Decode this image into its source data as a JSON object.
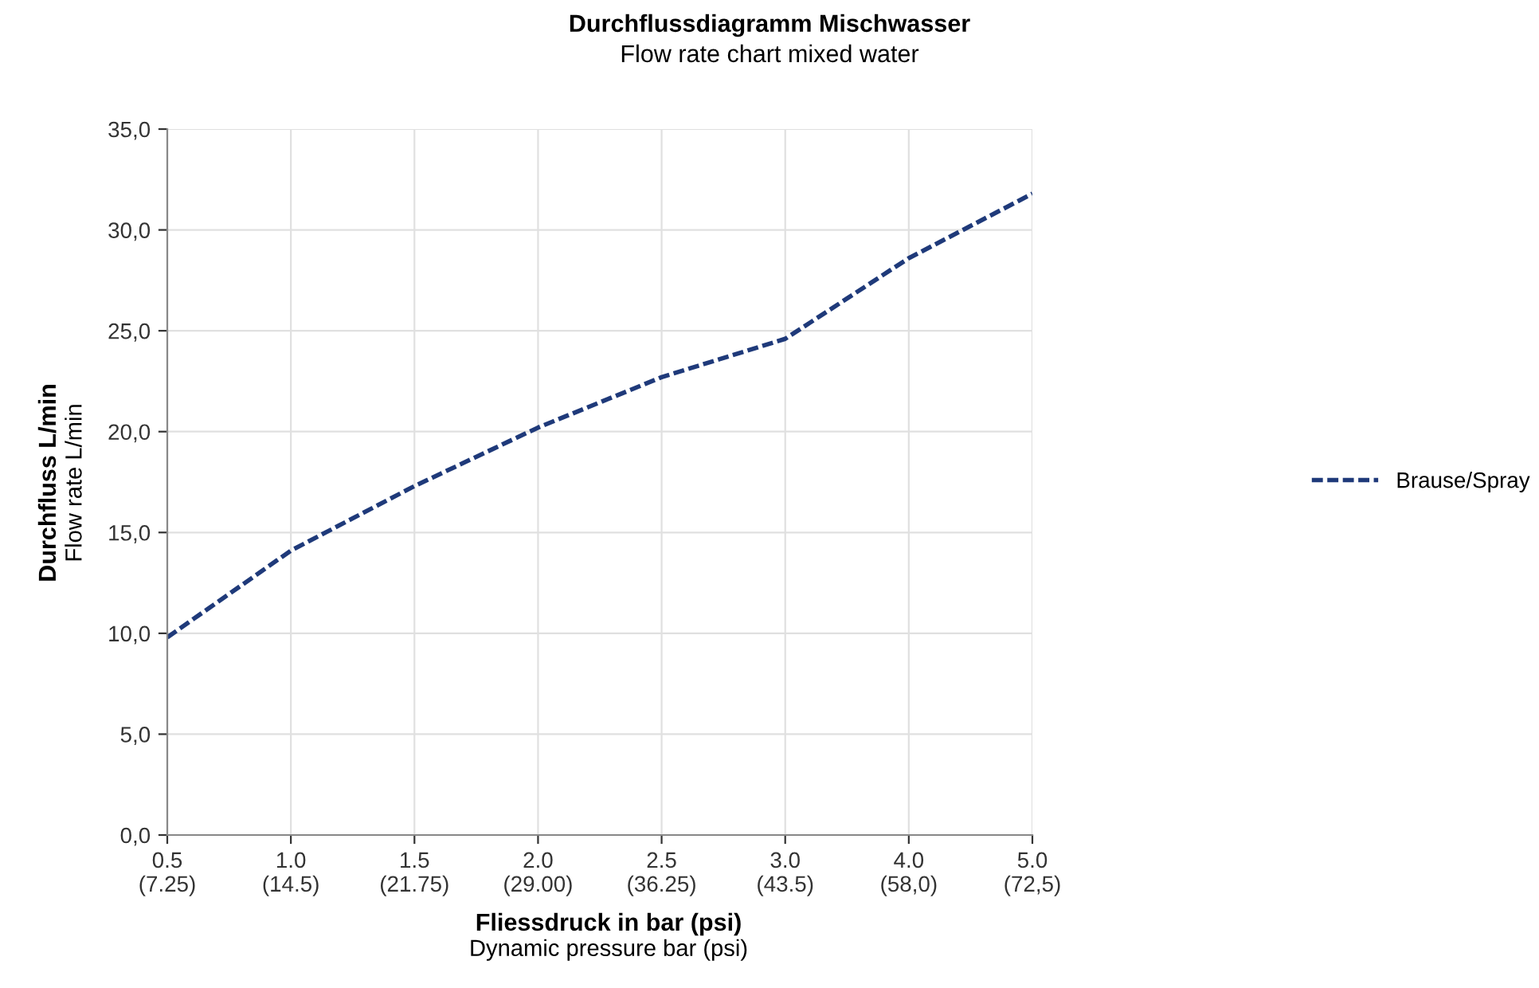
{
  "chart_data": {
    "type": "line",
    "title": "Durchflussdiagramm Mischwasser",
    "subtitle": "Flow rate chart mixed water",
    "xlabel": "Fliessdruck in bar (psi)\nDynamic pressure bar (psi)",
    "ylabel": "Durchfluss L/min\nFlow rate L/min",
    "categories": [
      "0.5\n(7.25)",
      "1.0\n(14.5)",
      "1.5\n(21.75)",
      "2.0\n(29.00)",
      "2.5\n(36.25)",
      "3.0\n(43.5)",
      "4.0\n(58,0)",
      "5.0\n(72,5)"
    ],
    "series": [
      {
        "name": "Brause/Spray",
        "color": "#1f3a7a",
        "values": [
          9.8,
          14.1,
          17.3,
          20.2,
          22.7,
          24.6,
          28.6,
          31.8
        ]
      }
    ],
    "ylim": [
      0,
      35
    ],
    "yticks": [
      {
        "value": 0,
        "label": "0,0"
      },
      {
        "value": 5,
        "label": "5,0"
      },
      {
        "value": 10,
        "label": "10,0"
      },
      {
        "value": 15,
        "label": "15,0"
      },
      {
        "value": 20,
        "label": "20,0"
      },
      {
        "value": 25,
        "label": "25,0"
      },
      {
        "value": 30,
        "label": "30,0"
      },
      {
        "value": 35,
        "label": "35,0"
      }
    ],
    "grid": true,
    "legend": "right",
    "marker": "none",
    "line_style": "dashed"
  }
}
